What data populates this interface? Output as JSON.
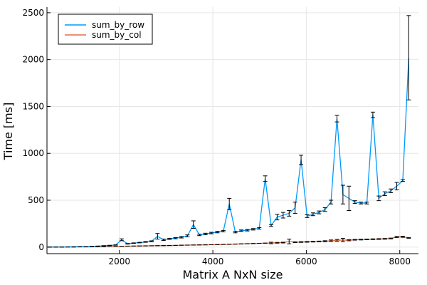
{
  "chart_data": {
    "type": "line",
    "title": "",
    "xlabel": "Matrix A NxN size",
    "ylabel": "Time [ms]",
    "xlim": [
      450,
      8400
    ],
    "ylim": [
      -70,
      2560
    ],
    "xticks": [
      2000,
      4000,
      6000,
      8000
    ],
    "xtick_labels": [
      "2000",
      "4000",
      "6000",
      "8000"
    ],
    "yticks": [
      0,
      500,
      1000,
      1500,
      2000,
      2500
    ],
    "ytick_labels": [
      "0",
      "500",
      "1000",
      "1500",
      "2000",
      "2500"
    ],
    "grid": true,
    "legend": {
      "position": "top-left"
    },
    "x": [
      512,
      640,
      768,
      896,
      1024,
      1152,
      1280,
      1408,
      1536,
      1664,
      1792,
      1920,
      2048,
      2176,
      2304,
      2432,
      2560,
      2688,
      2816,
      2944,
      3072,
      3200,
      3328,
      3456,
      3584,
      3712,
      3840,
      3968,
      4096,
      4224,
      4352,
      4480,
      4608,
      4736,
      4864,
      4992,
      5120,
      5248,
      5376,
      5504,
      5632,
      5760,
      5888,
      6016,
      6144,
      6272,
      6400,
      6528,
      6656,
      6784,
      6912,
      7040,
      7168,
      7296,
      7424,
      7552,
      7680,
      7808,
      7936,
      8064,
      8192
    ],
    "series": [
      {
        "name": "sum_by_row",
        "color": "#009af9",
        "values": [
          1,
          1,
          1,
          2,
          3,
          4,
          5,
          7,
          10,
          14,
          18,
          22,
          78,
          35,
          42,
          48,
          55,
          62,
          115,
          78,
          88,
          95,
          105,
          120,
          240,
          130,
          140,
          150,
          160,
          170,
          460,
          160,
          175,
          180,
          190,
          200,
          730,
          230,
          320,
          340,
          360,
          420,
          930,
          330,
          350,
          370,
          400,
          480,
          1370,
          560,
          520,
          480,
          470,
          470,
          1410,
          520,
          570,
          600,
          650,
          710,
          2020
        ],
        "err": [
          0,
          0,
          0,
          0,
          0,
          0,
          0,
          0,
          1,
          1,
          1,
          2,
          10,
          3,
          3,
          3,
          4,
          5,
          30,
          8,
          6,
          6,
          8,
          10,
          40,
          8,
          8,
          8,
          8,
          8,
          60,
          8,
          8,
          8,
          8,
          8,
          30,
          10,
          30,
          30,
          30,
          60,
          50,
          15,
          15,
          15,
          20,
          20,
          35,
          100,
          130,
          15,
          10,
          10,
          30,
          25,
          20,
          20,
          40,
          10,
          450
        ]
      },
      {
        "name": "sum_by_col",
        "color": "#e26f46",
        "values": [
          0,
          0,
          0,
          1,
          1,
          2,
          2,
          3,
          4,
          5,
          6,
          7,
          9,
          10,
          11,
          12,
          13,
          14,
          15,
          16,
          17,
          18,
          20,
          21,
          22,
          23,
          24,
          25,
          26,
          28,
          30,
          32,
          34,
          36,
          38,
          40,
          42,
          44,
          46,
          48,
          60,
          52,
          54,
          56,
          58,
          60,
          62,
          68,
          72,
          75,
          73,
          78,
          80,
          82,
          84,
          86,
          88,
          92,
          108,
          110,
          98
        ],
        "err": [
          0,
          0,
          0,
          0,
          0,
          0,
          0,
          0,
          0,
          0,
          0,
          0,
          0,
          0,
          0,
          0,
          0,
          0,
          0,
          0,
          0,
          0,
          0,
          0,
          0,
          0,
          0,
          0,
          0,
          0,
          0,
          0,
          0,
          0,
          0,
          0,
          0,
          8,
          4,
          4,
          25,
          4,
          4,
          4,
          4,
          4,
          6,
          8,
          10,
          18,
          6,
          4,
          4,
          4,
          4,
          4,
          4,
          4,
          6,
          6,
          4
        ]
      }
    ]
  }
}
